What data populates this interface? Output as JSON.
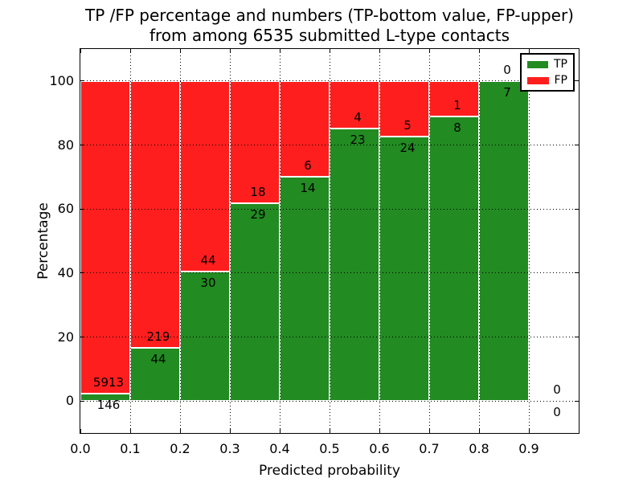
{
  "title": {
    "line1": "TP /FP percentage and numbers (TP-bottom value, FP-upper)",
    "line2": "from among 6535 submitted L-type contacts"
  },
  "y_axis": {
    "label": "Percentage",
    "ticks": [
      0,
      20,
      40,
      60,
      80,
      100
    ],
    "lim": [
      -10,
      110
    ]
  },
  "x_axis": {
    "label": "Predicted probability",
    "ticks": [
      "0.0",
      "0.1",
      "0.2",
      "0.3",
      "0.4",
      "0.5",
      "0.6",
      "0.7",
      "0.8",
      "0.9"
    ],
    "lim": [
      0,
      1
    ]
  },
  "legend": {
    "items": [
      {
        "label": "TP",
        "color": "#228b22"
      },
      {
        "label": "FP",
        "color": "#ff1e1e"
      }
    ]
  },
  "colors": {
    "tp": "#228b22",
    "fp": "#ff1e1e",
    "grid": "#000000",
    "bar_edge": "#ffffff"
  },
  "chart_data": {
    "type": "bar",
    "stacked": true,
    "grid": "dotted",
    "legend_position": "upper-right",
    "total_contacts": 6535,
    "bin_width": 0.1,
    "bins": [
      {
        "x0": 0.0,
        "x1": 0.1,
        "tp": 146,
        "fp": 5913,
        "tp_pct": 2.41
      },
      {
        "x0": 0.1,
        "x1": 0.2,
        "tp": 44,
        "fp": 219,
        "tp_pct": 16.73
      },
      {
        "x0": 0.2,
        "x1": 0.3,
        "tp": 30,
        "fp": 44,
        "tp_pct": 40.54
      },
      {
        "x0": 0.3,
        "x1": 0.4,
        "tp": 29,
        "fp": 18,
        "tp_pct": 61.7
      },
      {
        "x0": 0.4,
        "x1": 0.5,
        "tp": 14,
        "fp": 6,
        "tp_pct": 70.0
      },
      {
        "x0": 0.5,
        "x1": 0.6,
        "tp": 23,
        "fp": 4,
        "tp_pct": 85.19
      },
      {
        "x0": 0.6,
        "x1": 0.7,
        "tp": 24,
        "fp": 5,
        "tp_pct": 82.76
      },
      {
        "x0": 0.7,
        "x1": 0.8,
        "tp": 8,
        "fp": 1,
        "tp_pct": 88.89
      },
      {
        "x0": 0.8,
        "x1": 0.9,
        "tp": 7,
        "fp": 0,
        "tp_pct": 100.0
      },
      {
        "x0": 0.9,
        "x1": 1.0,
        "tp": 0,
        "fp": 0,
        "tp_pct": 0.0
      }
    ]
  }
}
